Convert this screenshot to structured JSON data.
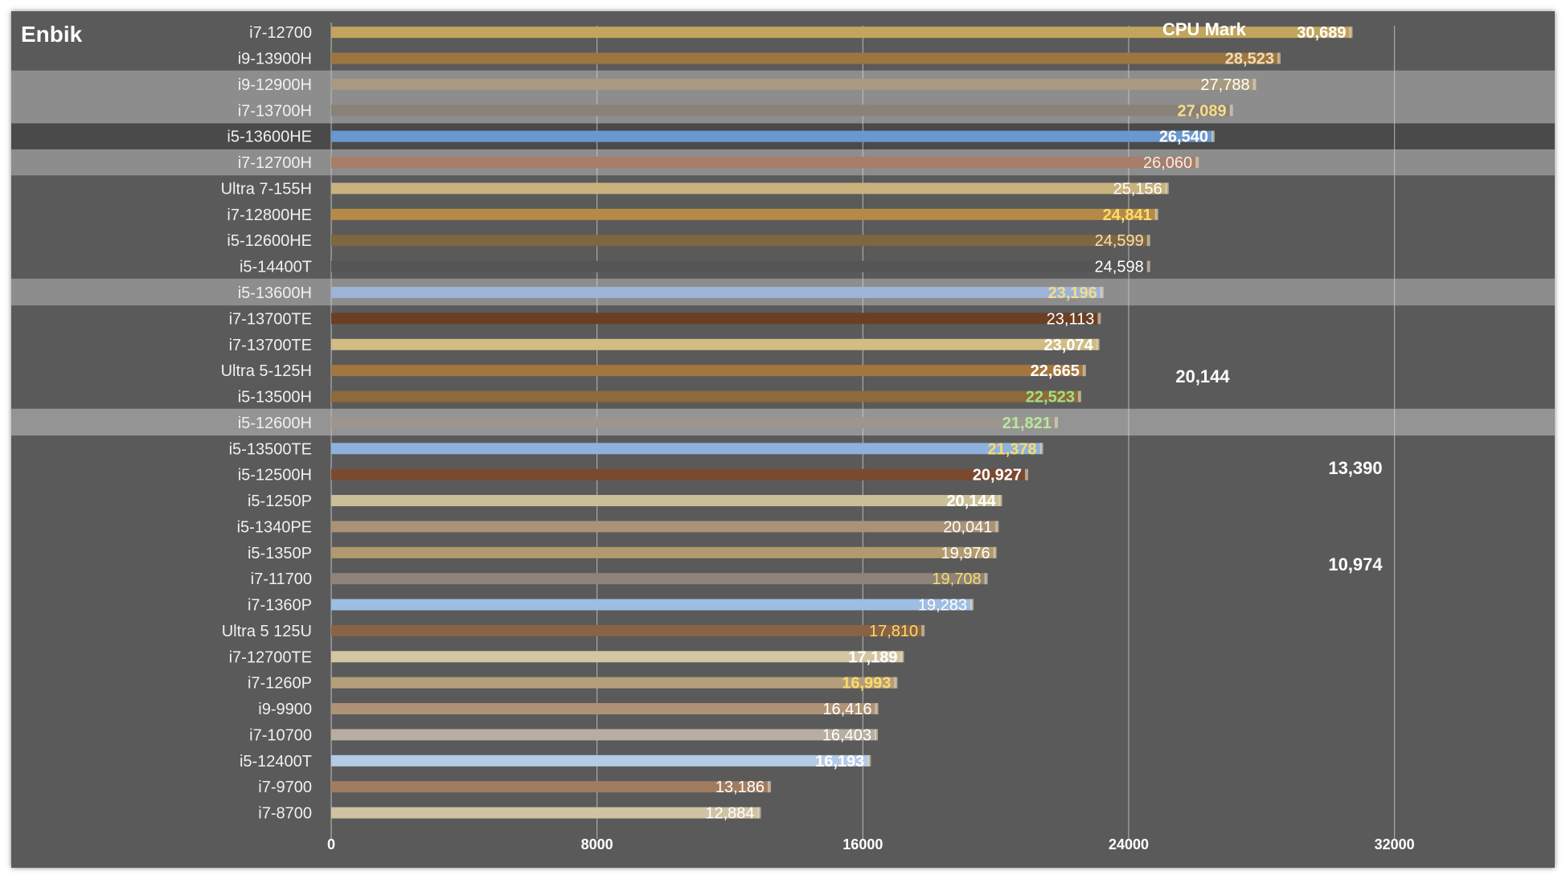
{
  "brand": "Enbik",
  "chart_data": {
    "type": "bar",
    "orientation": "horizontal",
    "title": "CPU Mark",
    "xlim": [
      0,
      36000
    ],
    "x_ticks": [
      "0",
      "8000",
      "16000",
      "24000",
      "32000"
    ],
    "x_tick_values": [
      0,
      8000,
      16000,
      24000,
      32000
    ],
    "grid": "vertical",
    "categories": [
      "i7-12700",
      "i9-13900H",
      "i9-12900H",
      "i7-13700H",
      "i5-13600HE",
      "i7-12700H",
      "Ultra 7-155H",
      "i7-12800HE",
      "i5-12600HE",
      "i5-14400T",
      "i5-13600H",
      "i7-13700TE",
      "i7-13700TE",
      "Ultra 5-125H",
      "i5-13500H",
      "i5-12600H",
      "i5-13500TE",
      "i5-12500H",
      "i5-1250P",
      "i5-1340PE",
      "i5-1350P",
      "i7-11700",
      "i7-1360P",
      "Ultra 5 125U",
      "i7-12700TE",
      "i7-1260P",
      "i9-9900",
      "i7-10700",
      "i5-12400T",
      "i7-9700",
      "i7-8700"
    ],
    "values": [
      30689,
      28523,
      27788,
      27089,
      26540,
      26060,
      25156,
      24841,
      24599,
      24598,
      23196,
      23113,
      23074,
      22665,
      22523,
      21821,
      21378,
      20927,
      20144,
      20041,
      19976,
      19708,
      19283,
      17810,
      17189,
      16993,
      16416,
      16403,
      16193,
      13186,
      12884
    ],
    "labels": [
      "30,689",
      "28,523",
      "27,788",
      "27,089",
      "26,540",
      "26,060",
      "25,156",
      "24,841",
      "24,599",
      "24,598",
      "23,196",
      "23,113",
      "23,074",
      "22,665",
      "22,523",
      "21,821",
      "21,378",
      "20,927",
      "20,144",
      "20,041",
      "19,976",
      "19,708",
      "19,283",
      "17,810",
      "17,189",
      "16,993",
      "16,416",
      "16,403",
      "16,193",
      "13,186",
      "12,884"
    ],
    "bar_colors": [
      "#c2a55c",
      "#9c7640",
      "#a89a80",
      "#8a8278",
      "#6a97cf",
      "#a87e6a",
      "#c9b27e",
      "#b58a48",
      "#7d6640",
      "#555555",
      "#9db4d6",
      "#6b3f24",
      "#d1bc84",
      "#a3763e",
      "#8b6a3c",
      "#9e968e",
      "#8fb1dd",
      "#7a4a30",
      "#cbbf98",
      "#ab9276",
      "#b19a6d",
      "#8d8378",
      "#9dbde3",
      "#8a6245",
      "#d3c6a2",
      "#b59e7b",
      "#b09276",
      "#b7ada0",
      "#b3cbe6",
      "#a17c60",
      "#cfc3a3"
    ],
    "label_colors": [
      "#ffffff",
      "#f2dcb8",
      "#ffffff",
      "#f4dd8a",
      "#ffffff",
      "#eeeeee",
      "#ffffff",
      "#f8dc6a",
      "#f0e0c0",
      "#ffffff",
      "#f4dc8a",
      "#ffffff",
      "#ffffff",
      "#ffffff",
      "#9fe080",
      "#b4e8a0",
      "#f8dc6a",
      "#ffffff",
      "#ffffff",
      "#ffffff",
      "#ffffff",
      "#f8dc6a",
      "#ffffff",
      "#f8dc6a",
      "#ffffff",
      "#f8dc6a",
      "#ffffff",
      "#ffffff",
      "#ffffff",
      "#ffffff",
      "#ffffff"
    ],
    "label_bold": [
      true,
      true,
      false,
      true,
      true,
      false,
      false,
      true,
      false,
      false,
      true,
      false,
      true,
      true,
      true,
      true,
      true,
      true,
      true,
      false,
      false,
      false,
      false,
      false,
      true,
      true,
      false,
      false,
      true,
      false,
      false
    ],
    "highlighted_rows": [
      2,
      3,
      5,
      10,
      15
    ],
    "row_highlight_colors": [
      "#8d8d8d",
      "#8d8d8d",
      "#8d8d8d",
      "#8d8d8d",
      "#949494"
    ],
    "dark_band_rows": [
      4
    ],
    "side_notes": [
      "20,144",
      "13,390",
      "10,974"
    ]
  },
  "colors": {
    "background": "#5a5a5a",
    "grid": "#cfcfcf",
    "dark_band": "#4a4a4a"
  }
}
